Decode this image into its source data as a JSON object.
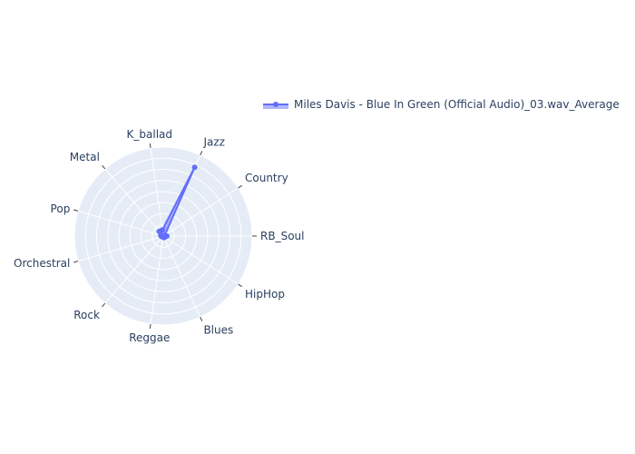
{
  "chart_data": {
    "type": "radar",
    "categories": [
      "RB_Soul",
      "HipHop",
      "Blues",
      "Reggae",
      "Rock",
      "Orchestral",
      "Pop",
      "Metal",
      "K_ballad",
      "Jazz",
      "Country"
    ],
    "series": [
      {
        "name": "Miles Davis - Blue In Green (Official Audio)_03.wav_Average",
        "values": [
          0.04,
          0.02,
          0.02,
          0.01,
          0.01,
          0.02,
          0.03,
          0.07,
          0.07,
          0.85,
          0.02
        ]
      }
    ],
    "radial_range": [
      0,
      1
    ],
    "grid": true,
    "legend_position": "top-right",
    "colors": {
      "series": "#636efa",
      "background": "#e5ecf6",
      "grid": "#ffffff",
      "text": "#2a3f5f"
    }
  }
}
